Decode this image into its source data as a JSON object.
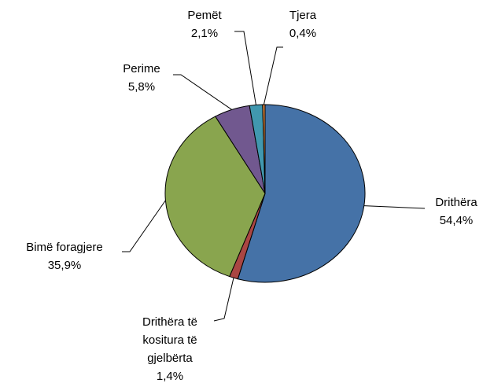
{
  "chart_data": {
    "type": "pie",
    "categories": [
      "Drithëra",
      "Drithëra të kositura të gjelbërta",
      "Bimë foragjere",
      "Perime",
      "Pemët",
      "Tjera"
    ],
    "values": [
      54.4,
      1.4,
      35.9,
      5.8,
      2.1,
      0.4
    ],
    "value_labels": [
      "54,4%",
      "1,4%",
      "35,9%",
      "5,8%",
      "2,1%",
      "0,4%"
    ],
    "colors": [
      "#4572a7",
      "#aa4643",
      "#89a54e",
      "#71588f",
      "#4198af",
      "#db843d"
    ]
  }
}
